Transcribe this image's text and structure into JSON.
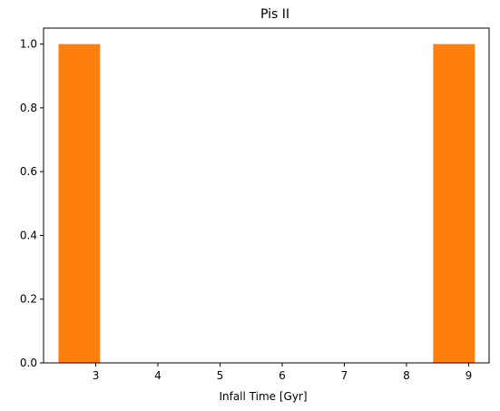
{
  "chart_data": {
    "type": "bar",
    "title": "Pis II",
    "xlabel": "Infall Time [Gyr]",
    "ylabel": "",
    "bin_edges": [
      2.4,
      3.07,
      3.74,
      4.41,
      5.08,
      5.75,
      6.42,
      7.09,
      7.76,
      8.43,
      9.1
    ],
    "values": [
      1,
      0,
      0,
      0,
      0,
      0,
      0,
      0,
      0,
      1
    ],
    "xlim": [
      2.16,
      9.33
    ],
    "ylim": [
      0,
      1.05
    ],
    "xticks": [
      3,
      4,
      5,
      6,
      7,
      8,
      9
    ],
    "yticks": [
      0.0,
      0.2,
      0.4,
      0.6,
      0.8,
      1.0
    ],
    "xtick_labels": [
      "3",
      "4",
      "5",
      "6",
      "7",
      "8",
      "9"
    ],
    "ytick_labels": [
      "0.0",
      "0.2",
      "0.4",
      "0.6",
      "0.8",
      "1.0"
    ],
    "bar_color": "#ff7f0e",
    "grid": false
  }
}
